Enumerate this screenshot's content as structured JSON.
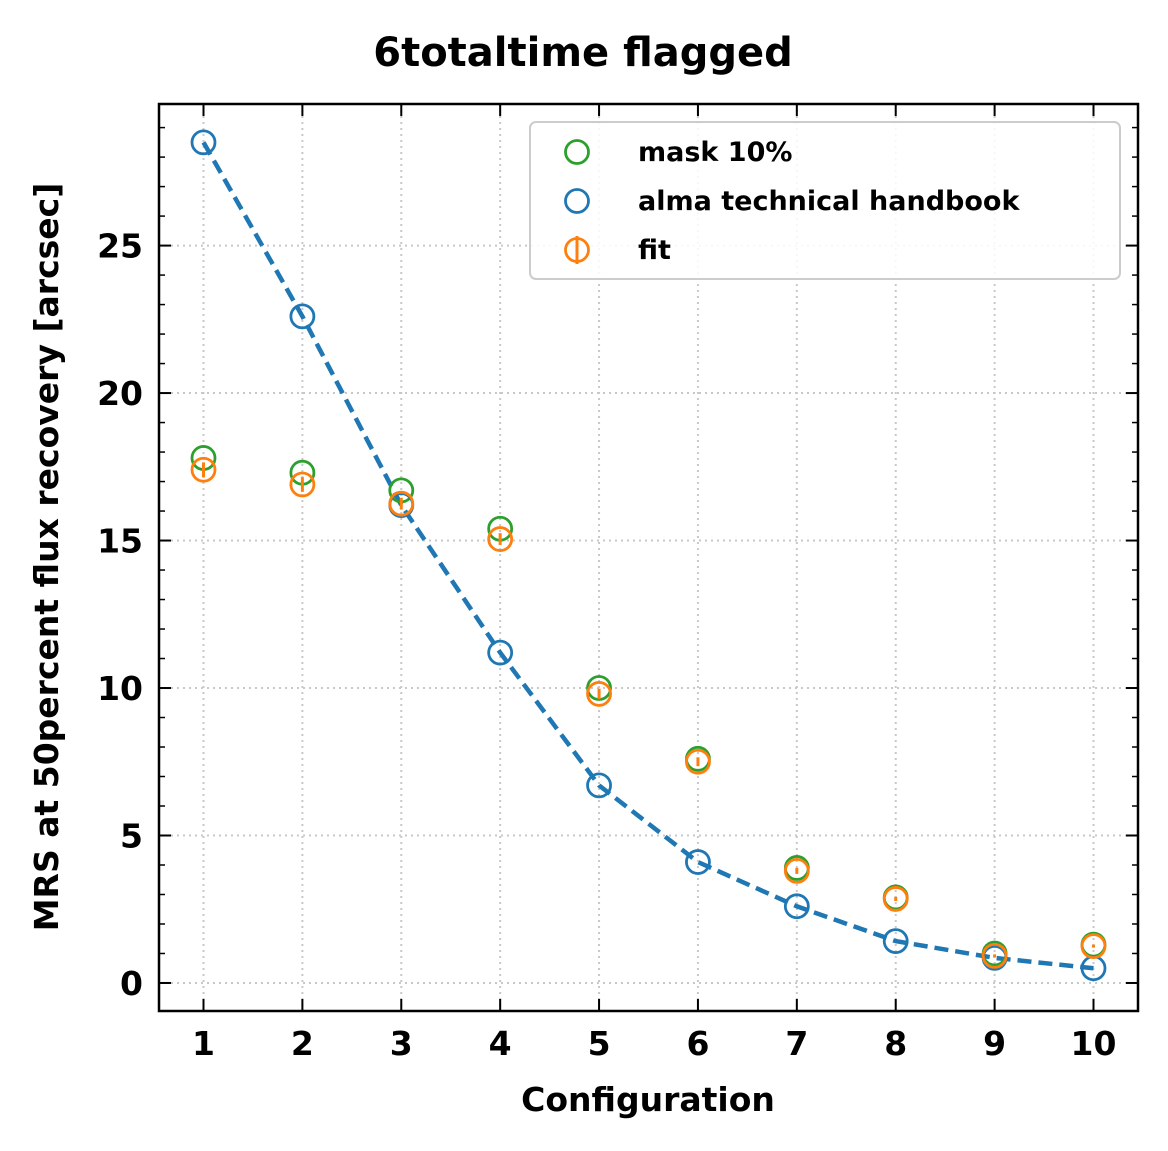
{
  "chart_data": {
    "type": "scatter",
    "title": "6totaltime flagged",
    "xlabel": "Configuration",
    "ylabel": "MRS at 50percent flux recovery [arcsec]",
    "x": [
      1,
      2,
      3,
      4,
      5,
      6,
      7,
      8,
      9,
      10
    ],
    "xlim": [
      0.55,
      10.45
    ],
    "ylim": [
      -0.95,
      29.8
    ],
    "xticks": [
      "1",
      "2",
      "3",
      "4",
      "5",
      "6",
      "7",
      "8",
      "9",
      "10"
    ],
    "yticks": [
      "0",
      "5",
      "10",
      "15",
      "20",
      "25"
    ],
    "grid": true,
    "legend_position": "top-right",
    "series": [
      {
        "name": "mask 10%",
        "color": "#2ca02c",
        "marker": "open-circle",
        "values": [
          17.8,
          17.3,
          16.7,
          15.4,
          10.0,
          7.6,
          3.9,
          2.9,
          1.0,
          1.3
        ]
      },
      {
        "name": "alma technical handbook",
        "color": "#1f77b4",
        "marker": "open-circle",
        "line": "dashed",
        "values": [
          28.5,
          22.6,
          16.2,
          11.2,
          6.7,
          4.1,
          2.6,
          1.42,
          0.85,
          0.5
        ]
      },
      {
        "name": "fit",
        "color": "#ff7f0e",
        "marker": "open-circle-errorbar",
        "values": [
          17.4,
          16.9,
          16.25,
          15.05,
          9.8,
          7.5,
          3.8,
          2.85,
          0.92,
          1.25
        ],
        "errors": [
          0.25,
          0.25,
          0.2,
          0.2,
          0.18,
          0.15,
          0.1,
          0.07,
          0.05,
          0.05
        ]
      }
    ]
  }
}
